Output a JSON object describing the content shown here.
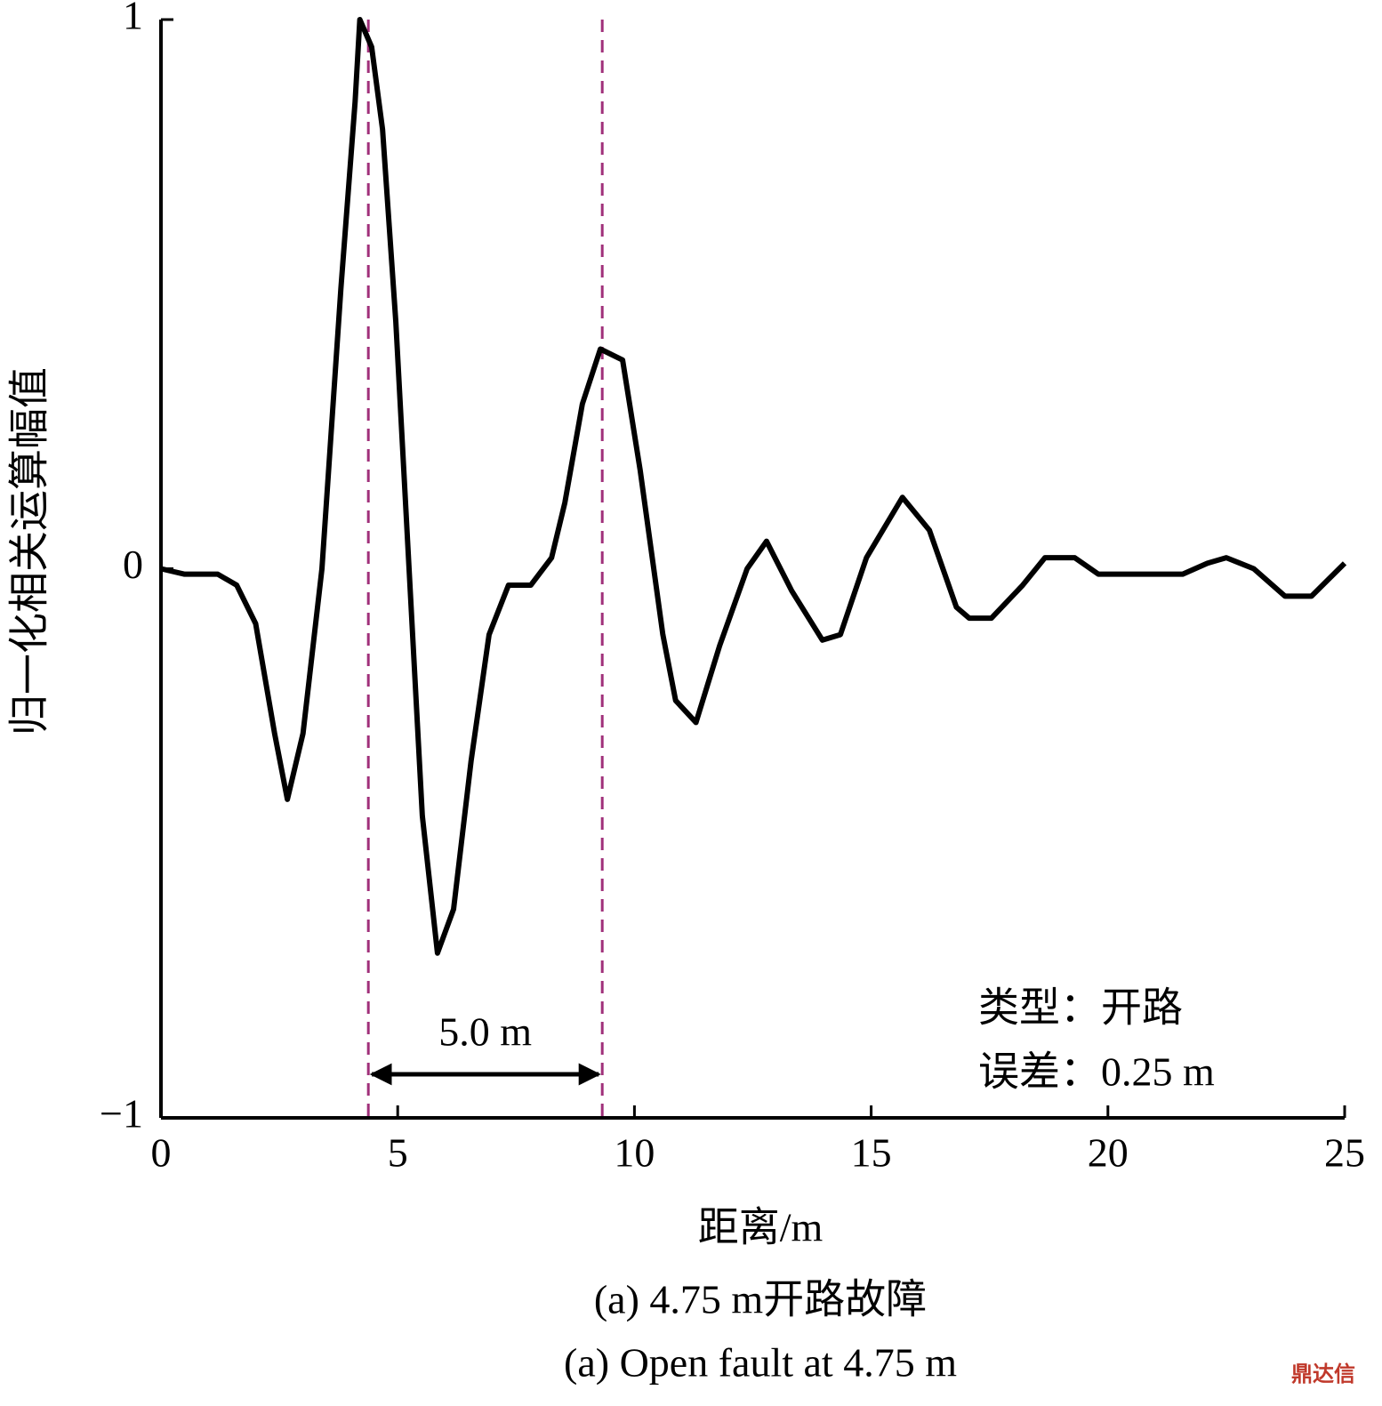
{
  "chart_data": {
    "type": "line",
    "xlabel": "距离/m",
    "ylabel": "归一化相关运算幅值",
    "x": [
      0,
      0.5,
      1.2,
      1.6,
      2.0,
      2.4,
      2.67,
      3.0,
      3.4,
      3.8,
      4.1,
      4.2,
      4.45,
      4.68,
      4.96,
      5.24,
      5.52,
      5.84,
      6.18,
      6.55,
      6.93,
      7.34,
      7.81,
      8.25,
      8.53,
      8.9,
      9.28,
      9.75,
      10.12,
      10.6,
      10.87,
      11.3,
      11.8,
      12.38,
      12.79,
      13.32,
      13.97,
      14.35,
      14.9,
      15.66,
      16.23,
      16.8,
      17.07,
      17.54,
      18.2,
      18.67,
      19.3,
      19.8,
      21.58,
      22.1,
      22.5,
      23.08,
      23.74,
      24.3,
      25
    ],
    "values": [
      0,
      -0.01,
      -0.01,
      -0.03,
      -0.1,
      -0.3,
      -0.42,
      -0.3,
      0.0,
      0.51,
      0.85,
      1.0,
      0.95,
      0.8,
      0.45,
      0.0,
      -0.45,
      -0.7,
      -0.62,
      -0.35,
      -0.12,
      -0.03,
      -0.03,
      0.02,
      0.12,
      0.3,
      0.4,
      0.38,
      0.18,
      -0.12,
      -0.24,
      -0.28,
      -0.14,
      0.0,
      0.05,
      -0.04,
      -0.13,
      -0.12,
      0.02,
      0.13,
      0.07,
      -0.07,
      -0.09,
      -0.09,
      -0.03,
      0.02,
      0.02,
      -0.01,
      -0.01,
      0.01,
      0.02,
      0.0,
      -0.05,
      -0.05,
      0.01
    ],
    "color": "#000000",
    "xlim": [
      0,
      25
    ],
    "xticks": [
      0,
      5,
      10,
      15,
      20,
      25
    ],
    "ylim": [
      -1,
      1
    ],
    "yticks": [
      {
        "value": -1,
        "label": "−1"
      },
      0,
      1
    ],
    "vlines": [
      4.38,
      9.32
    ],
    "vline_color": "#a0307a",
    "span_label": "5.0 m",
    "annotations": [
      "类型：开路",
      "误差：0.25 m"
    ],
    "caption": [
      "(a) 4.75 m开路故障",
      "(a) Open fault at 4.75 m"
    ],
    "watermark": "鼎达信"
  }
}
